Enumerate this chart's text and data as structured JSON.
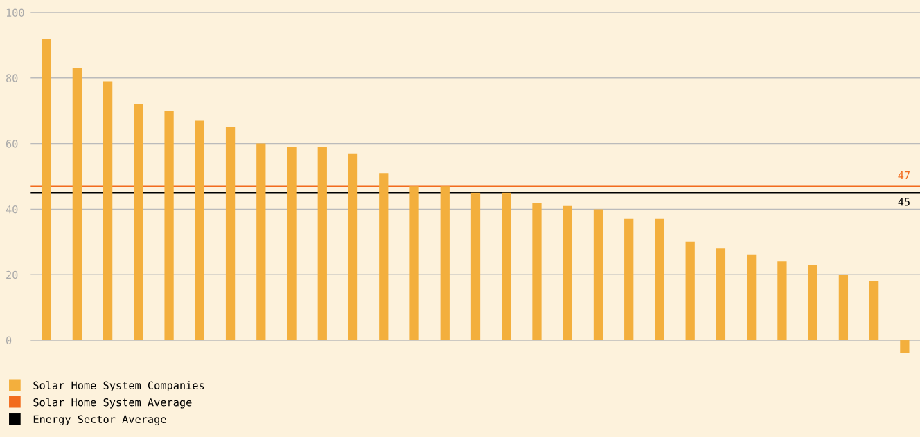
{
  "chart_data": {
    "type": "bar",
    "categories": [
      null,
      null,
      null,
      null,
      null,
      null,
      null,
      null,
      null,
      null,
      null,
      null,
      null,
      null,
      null,
      null,
      null,
      null,
      null,
      null,
      null,
      null,
      null,
      null,
      null,
      null,
      null,
      null,
      null
    ],
    "series": [
      {
        "name": "Solar Home System Companies",
        "color": "#f3af3d",
        "values": [
          92,
          83,
          79,
          72,
          70,
          67,
          65,
          60,
          59,
          59,
          57,
          51,
          47,
          47,
          45,
          45,
          42,
          41,
          40,
          37,
          37,
          30,
          28,
          26,
          24,
          23,
          20,
          18,
          -4
        ]
      }
    ],
    "ylim": [
      -4,
      100
    ],
    "yticks": [
      0,
      20,
      40,
      60,
      80,
      100
    ],
    "grid": "y",
    "legend": "bottom left",
    "tick_labels": "y",
    "annotations": [
      {
        "text": "47",
        "y": 47
      },
      {
        "text": "45",
        "y": 45
      }
    ],
    "ref_lines": [
      {
        "axis": "y",
        "value": 47,
        "label": "Solar Home System Average",
        "color": "#f26b1d"
      },
      {
        "axis": "y",
        "value": 45,
        "label": "Energy Sector Average",
        "color": "#000000"
      }
    ]
  }
}
